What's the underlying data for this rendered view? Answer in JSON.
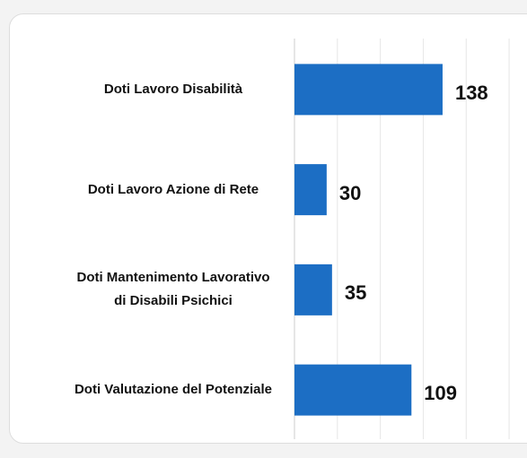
{
  "chart_data": {
    "type": "barh",
    "categories": [
      "Doti Lavoro Disabilità",
      "Doti Lavoro Azione di Rete",
      "Doti Mantenimento Lavorativo di Disabili Psichici",
      "Doti Valutazione del Potenziale"
    ],
    "values": [
      138,
      30,
      35,
      109
    ],
    "color": "#1c6ec4",
    "xlim": [
      0,
      215
    ],
    "xticks": [
      0,
      40,
      80,
      120,
      160,
      200
    ],
    "grid": true
  }
}
